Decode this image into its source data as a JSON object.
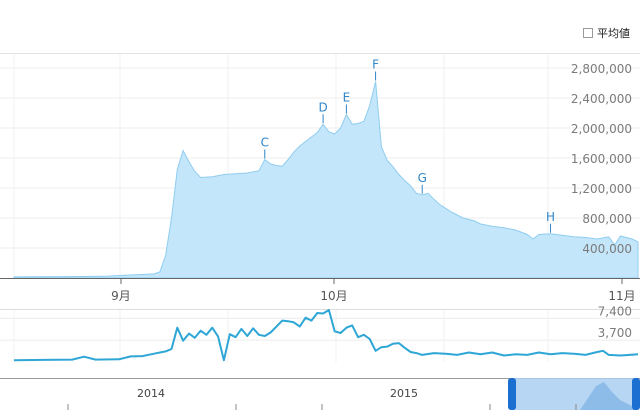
{
  "toggle": {
    "label": "平均値",
    "checked": false
  },
  "colors": {
    "accent": "#3aa0d8",
    "area": "#c4e6fa",
    "nav_fill": "#a9cff1",
    "handle": "#1b6fd0"
  },
  "chart_data": [
    {
      "type": "area",
      "ylim": [
        0,
        3000000
      ],
      "y_ticks": [
        400000,
        800000,
        1200000,
        1600000,
        2000000,
        2400000,
        2800000
      ],
      "y_tick_labels": [
        "400,000",
        "800,000",
        "1,200,000",
        "1,600,000",
        "2,000,000",
        "2,400,000",
        "2,800,000"
      ],
      "x_tick_labels": [
        "9月",
        "10月",
        "11月"
      ],
      "grid": true,
      "points": [
        [
          0,
          15000
        ],
        [
          4,
          16000
        ],
        [
          8,
          18000
        ],
        [
          12,
          20000
        ],
        [
          16,
          25000
        ],
        [
          20,
          40000
        ],
        [
          24,
          55000
        ],
        [
          25,
          80000
        ],
        [
          26,
          300000
        ],
        [
          27,
          800000
        ],
        [
          28,
          1450000
        ],
        [
          29,
          1700000
        ],
        [
          30,
          1550000
        ],
        [
          31,
          1420000
        ],
        [
          32,
          1340000
        ],
        [
          34,
          1350000
        ],
        [
          36,
          1380000
        ],
        [
          38,
          1390000
        ],
        [
          40,
          1400000
        ],
        [
          42,
          1430000
        ],
        [
          43,
          1580000
        ],
        [
          44,
          1520000
        ],
        [
          45,
          1500000
        ],
        [
          46,
          1490000
        ],
        [
          47,
          1580000
        ],
        [
          48,
          1680000
        ],
        [
          49,
          1760000
        ],
        [
          50,
          1820000
        ],
        [
          51,
          1880000
        ],
        [
          52,
          1940000
        ],
        [
          53,
          2050000
        ],
        [
          54,
          1950000
        ],
        [
          55,
          1920000
        ],
        [
          56,
          2000000
        ],
        [
          57,
          2180000
        ],
        [
          58,
          2050000
        ],
        [
          59,
          2060000
        ],
        [
          60,
          2090000
        ],
        [
          61,
          2300000
        ],
        [
          62,
          2620000
        ],
        [
          63,
          1750000
        ],
        [
          64,
          1570000
        ],
        [
          65,
          1480000
        ],
        [
          66,
          1380000
        ],
        [
          67,
          1300000
        ],
        [
          68,
          1230000
        ],
        [
          69,
          1130000
        ],
        [
          70,
          1110000
        ],
        [
          71,
          1130000
        ],
        [
          72,
          1050000
        ],
        [
          73,
          980000
        ],
        [
          74,
          930000
        ],
        [
          75,
          880000
        ],
        [
          76,
          840000
        ],
        [
          77,
          800000
        ],
        [
          78,
          780000
        ],
        [
          79,
          760000
        ],
        [
          80,
          720000
        ],
        [
          82,
          690000
        ],
        [
          84,
          670000
        ],
        [
          86,
          640000
        ],
        [
          88,
          580000
        ],
        [
          89,
          520000
        ],
        [
          90,
          580000
        ],
        [
          92,
          590000
        ],
        [
          94,
          570000
        ],
        [
          96,
          550000
        ],
        [
          98,
          540000
        ],
        [
          100,
          520000
        ],
        [
          102,
          550000
        ],
        [
          103,
          440000
        ],
        [
          104,
          560000
        ],
        [
          106,
          520000
        ],
        [
          107,
          480000
        ]
      ],
      "annotations": [
        {
          "label": "C",
          "x": 43
        },
        {
          "label": "D",
          "x": 53
        },
        {
          "label": "E",
          "x": 57
        },
        {
          "label": "F",
          "x": 62
        },
        {
          "label": "G",
          "x": 70
        },
        {
          "label": "H",
          "x": 92
        }
      ]
    },
    {
      "type": "line",
      "ylim": [
        0,
        8800
      ],
      "y_ticks": [
        3700,
        7400
      ],
      "y_tick_labels": [
        "3,700",
        "7,400"
      ],
      "grid": true,
      "points": [
        [
          0,
          300
        ],
        [
          5,
          350
        ],
        [
          10,
          400
        ],
        [
          12,
          900
        ],
        [
          14,
          400
        ],
        [
          18,
          450
        ],
        [
          20,
          950
        ],
        [
          22,
          1000
        ],
        [
          24,
          1400
        ],
        [
          26,
          1800
        ],
        [
          27,
          2200
        ],
        [
          28,
          5800
        ],
        [
          29,
          3600
        ],
        [
          30,
          4800
        ],
        [
          31,
          4100
        ],
        [
          32,
          5300
        ],
        [
          33,
          4600
        ],
        [
          34,
          5800
        ],
        [
          35,
          4300
        ],
        [
          36,
          300
        ],
        [
          37,
          4700
        ],
        [
          38,
          4200
        ],
        [
          39,
          5600
        ],
        [
          40,
          4400
        ],
        [
          41,
          5700
        ],
        [
          42,
          4600
        ],
        [
          43,
          4400
        ],
        [
          44,
          5000
        ],
        [
          46,
          7000
        ],
        [
          47,
          6900
        ],
        [
          48,
          6700
        ],
        [
          49,
          6000
        ],
        [
          50,
          7500
        ],
        [
          51,
          7000
        ],
        [
          52,
          8300
        ],
        [
          53,
          8200
        ],
        [
          54,
          8800
        ],
        [
          55,
          5200
        ],
        [
          56,
          4900
        ],
        [
          57,
          5800
        ],
        [
          58,
          6200
        ],
        [
          59,
          4200
        ],
        [
          60,
          4600
        ],
        [
          61,
          3900
        ],
        [
          62,
          1900
        ],
        [
          63,
          2500
        ],
        [
          64,
          2600
        ],
        [
          65,
          3100
        ],
        [
          66,
          3200
        ],
        [
          67,
          2400
        ],
        [
          68,
          1700
        ],
        [
          69,
          1500
        ],
        [
          70,
          1200
        ],
        [
          72,
          1500
        ],
        [
          74,
          1400
        ],
        [
          76,
          1200
        ],
        [
          78,
          1600
        ],
        [
          80,
          1300
        ],
        [
          82,
          1600
        ],
        [
          84,
          1100
        ],
        [
          86,
          1300
        ],
        [
          88,
          1200
        ],
        [
          90,
          1600
        ],
        [
          92,
          1300
        ],
        [
          94,
          1500
        ],
        [
          96,
          1400
        ],
        [
          98,
          1200
        ],
        [
          100,
          1700
        ],
        [
          101,
          1900
        ],
        [
          102,
          1200
        ],
        [
          104,
          1100
        ],
        [
          107,
          1300
        ]
      ]
    },
    {
      "type": "area",
      "x_tick_labels": [
        "2014",
        "2015"
      ]
    }
  ]
}
